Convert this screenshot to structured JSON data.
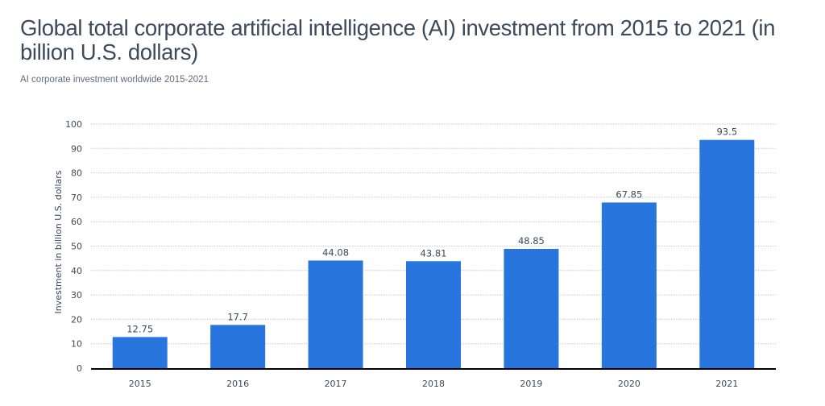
{
  "chart_data": {
    "type": "bar",
    "title": "Global total corporate artificial intelligence (AI) investment from 2015 to 2021 (in billion U.S. dollars)",
    "subtitle": "AI corporate investment worldwide 2015-2021",
    "xlabel": "",
    "ylabel": "Investment in billion U.S. dollars",
    "categories": [
      "2015",
      "2016",
      "2017",
      "2018",
      "2019",
      "2020",
      "2021"
    ],
    "values": [
      12.75,
      17.7,
      44.08,
      43.81,
      48.85,
      67.85,
      93.5
    ],
    "value_labels": [
      "12.75",
      "17.7",
      "44.08",
      "43.81",
      "48.85",
      "67.85",
      "93.5"
    ],
    "ylim": [
      0,
      100
    ],
    "yticks": [
      0,
      10,
      20,
      30,
      40,
      50,
      60,
      70,
      80,
      90,
      100
    ],
    "grid": true,
    "legend": "none",
    "bar_color": "#2876dd",
    "grid_color": "#c4c8ce",
    "axis_color": "#000000"
  }
}
